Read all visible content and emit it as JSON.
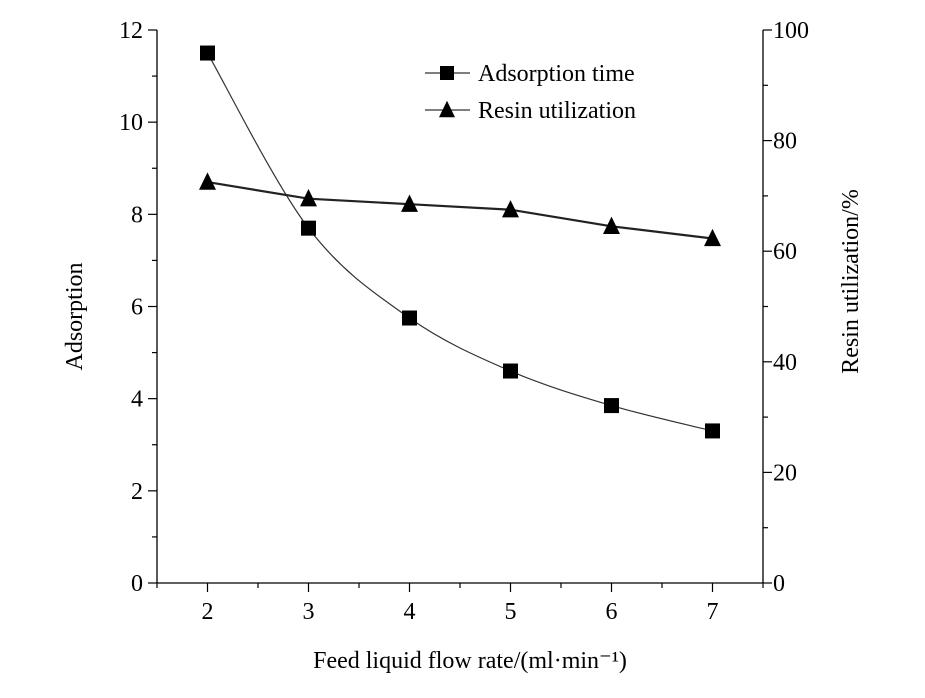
{
  "chart_data": {
    "type": "line",
    "xlabel": "Feed liquid flow rate/(ml·min⁻¹)",
    "ylabel_left": "Adsorption",
    "ylabel_right": "Resin utilization/%",
    "x": [
      2,
      3,
      4,
      5,
      6,
      7
    ],
    "xlim": [
      1.5,
      7.5
    ],
    "xticks": [
      "2",
      "3",
      "4",
      "5",
      "6",
      "7"
    ],
    "ylim_left": [
      0,
      12
    ],
    "yticks_left": [
      "0",
      "2",
      "4",
      "6",
      "8",
      "10",
      "12"
    ],
    "ylim_right": [
      0,
      100
    ],
    "yticks_right": [
      "0",
      "20",
      "40",
      "60",
      "80",
      "100"
    ],
    "series": [
      {
        "name": "Adsorption time",
        "axis": "left",
        "marker": "square",
        "values": [
          11.5,
          7.7,
          5.75,
          4.6,
          3.85,
          3.3
        ]
      },
      {
        "name": "Resin utilization",
        "axis": "right",
        "marker": "triangle",
        "values": [
          72.5,
          69.5,
          68.5,
          67.5,
          64.5,
          62.3
        ]
      }
    ],
    "legend_position": "top-right",
    "grid": false
  }
}
